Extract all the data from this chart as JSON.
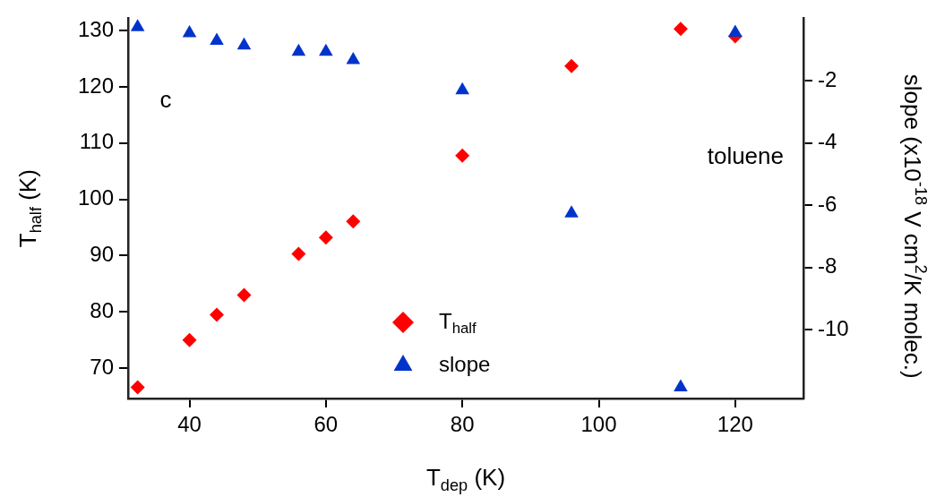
{
  "chart_data": {
    "type": "scatter",
    "xlabel": "T$_{dep}$ (K)",
    "ylabel": "T$_{half}$ (K)",
    "y2label": "slope (x10$^{-18}$ V cm$^{2}$/K molec.)",
    "x": [
      32.4,
      40,
      44,
      48,
      56,
      60,
      64,
      80,
      96,
      112,
      120
    ],
    "series": [
      {
        "name": "T$_{half}$",
        "color": "#ff0000",
        "marker": "diamond",
        "values": [
          66.6,
          75,
          79.5,
          83,
          90.3,
          93.2,
          96.1,
          107.8,
          123.7,
          130.3,
          129
        ]
      },
      {
        "name": "slope",
        "color": "#0033cc",
        "marker": "triangle",
        "axis": "y2",
        "values": [
          -0.28,
          -0.48,
          -0.72,
          -0.87,
          -1.07,
          -1.07,
          -1.34,
          -2.31,
          -6.26,
          -11.84,
          -0.46
        ]
      }
    ],
    "xlim": [
      31,
      130
    ],
    "xticks": [
      40,
      60,
      80,
      100,
      120
    ],
    "ylim": [
      64.6,
      132.2
    ],
    "yticks": [
      70,
      80,
      90,
      100,
      110,
      120,
      130
    ],
    "y2lim": [
      -12.2,
      0
    ],
    "y2ticks": [
      -10,
      -8,
      -6,
      -4,
      -2
    ],
    "annotations": [
      "c",
      "toluene"
    ],
    "legend": "bottom",
    "grid": false
  }
}
